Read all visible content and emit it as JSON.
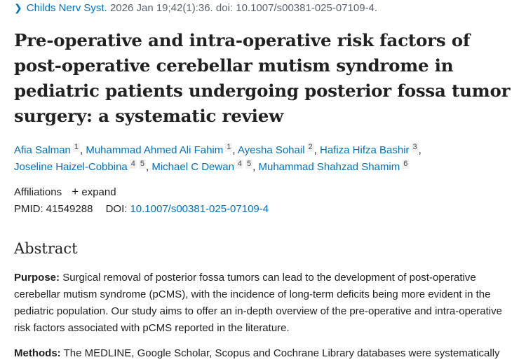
{
  "citation": {
    "journal": "Childs Nerv Syst.",
    "details": "2026 Jan 19;42(1):36. doi: 10.1007/s00381-025-07109-4."
  },
  "title": "Pre-operative and intra-operative risk factors of post-operative cerebellar mutism syndrome in pediatric patients undergoing posterior fossa tumor surgery: a systematic review",
  "authors": [
    {
      "name": "Afia Salman",
      "aff": [
        "1"
      ]
    },
    {
      "name": "Muhammad Ahmed Ali Fahim",
      "aff": [
        "1"
      ]
    },
    {
      "name": "Ayesha Sohail",
      "aff": [
        "2"
      ]
    },
    {
      "name": "Hafiza Hifza Bashir",
      "aff": [
        "3"
      ]
    },
    {
      "name": "Joseline Haizel-Cobbina",
      "aff": [
        "4",
        "5"
      ]
    },
    {
      "name": "Michael C Dewan",
      "aff": [
        "4",
        "5"
      ]
    },
    {
      "name": "Muhammad Shahzad Shamim",
      "aff": [
        "6"
      ]
    }
  ],
  "affiliations": {
    "label": "Affiliations",
    "expand": "expand"
  },
  "ids": {
    "pmid_label": "PMID:",
    "pmid": "41549288",
    "doi_label": "DOI:",
    "doi": "10.1007/s00381-025-07109-4"
  },
  "abstract": {
    "heading": "Abstract",
    "purpose_label": "Purpose:",
    "purpose": "Surgical removal of posterior fossa tumors can lead to the development of post-operative cerebellar mutism syndrome (pCMS), with the incidence of long-term deficits being more evident in the pediatric population. Our study aims to offer an in-depth overview of the pre-operative and intra-operative risk factors associated with pCMS reported in the literature.",
    "methods_label": "Methods:",
    "methods": "The MEDLINE, Google Scholar, Scopus and Cochrane Library databases were systematically"
  },
  "colors": {
    "link": "#0071bc",
    "text": "#212121"
  }
}
